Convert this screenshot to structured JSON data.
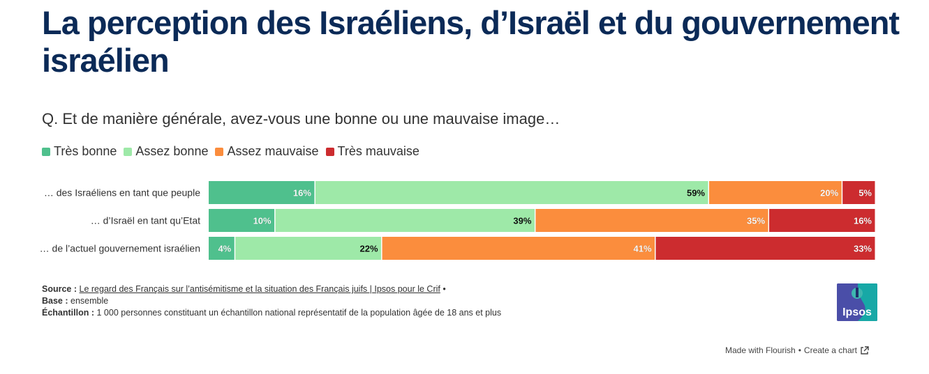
{
  "title": "La perception des Israéliens, d’Israël et du gouvernement israélien",
  "subtitle": "Q. Et de manière générale, avez-vous une bonne ou une mauvaise image…",
  "colors": {
    "tres_bonne": "#4fc08d",
    "assez_bonne": "#9ee9a8",
    "assez_mauvaise": "#fb8d3d",
    "tres_mauvaise": "#cc2c2f",
    "title": "#0b2a57"
  },
  "chart_data": {
    "type": "bar",
    "orientation": "horizontal",
    "stacked": true,
    "categories": [
      "… des Israéliens en tant que peuple",
      "… d’Israël en tant qu’Etat",
      "… de l’actuel gouvernement israélien"
    ],
    "series": [
      {
        "name": "Très bonne",
        "values": [
          16,
          10,
          4
        ],
        "color": "#4fc08d"
      },
      {
        "name": "Assez bonne",
        "values": [
          59,
          39,
          22
        ],
        "color": "#9ee9a8"
      },
      {
        "name": "Assez mauvaise",
        "values": [
          20,
          35,
          41
        ],
        "color": "#fb8d3d"
      },
      {
        "name": "Très mauvaise",
        "values": [
          5,
          16,
          33
        ],
        "color": "#cc2c2f"
      }
    ],
    "value_suffix": "%",
    "legend_position": "top-left"
  },
  "footer": {
    "source_label": "Source :",
    "source_link": "Le regard des Français sur l’antisémitisme et la situation des Français juifs | Ipsos pour le Crif",
    "source_sep": "•",
    "base_label": "Base :",
    "base_value": "ensemble",
    "sample_label": "Échantillon :",
    "sample_value": "1 000 personnes constituant un échantillon national représentatif de la population âgée de 18 ans et plus"
  },
  "logo_text": "Ipsos",
  "credit": {
    "made_with": "Made with Flourish",
    "sep": "•",
    "create": "Create a chart",
    "icon": "external-link-icon"
  }
}
